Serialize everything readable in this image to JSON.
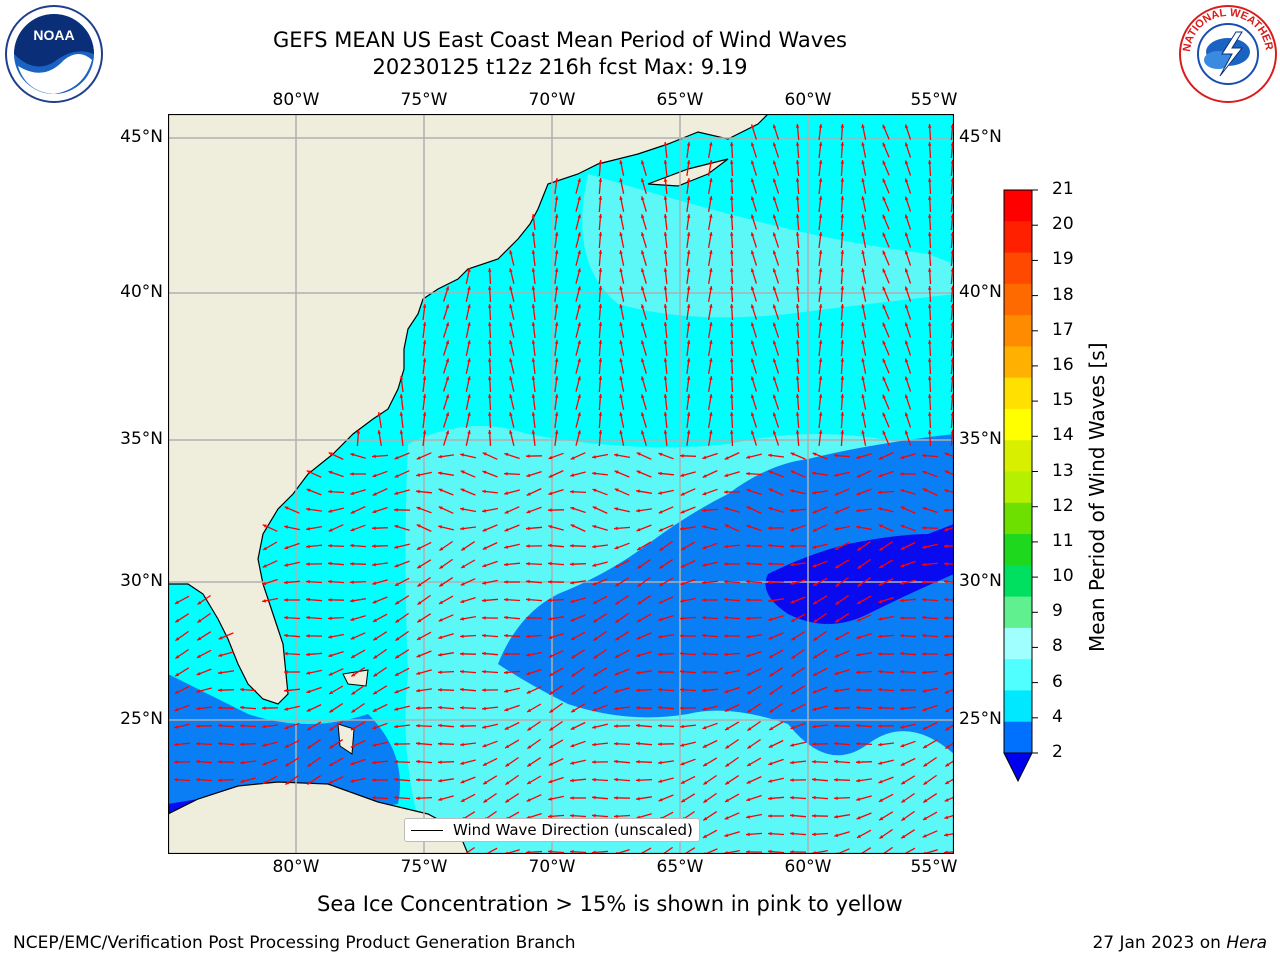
{
  "header": {
    "title_line1": "GEFS MEAN US East Coast Mean Period of Wind Waves",
    "title_line2": "20230125 t12z 216h fcst   Max: 9.19"
  },
  "logos": {
    "left": "noaa-logo",
    "right": "national-weather-service-logo",
    "left_text": "NOAA",
    "right_text": "NATIONAL WEATHER SERVICE"
  },
  "axes": {
    "lon_ticks": [
      "80°W",
      "75°W",
      "70°W",
      "65°W",
      "60°W",
      "55°W"
    ],
    "lat_ticks": [
      "45°N",
      "40°N",
      "35°N",
      "30°N",
      "25°N"
    ]
  },
  "legend": {
    "label": "Wind Wave Direction (unscaled)"
  },
  "colorbar": {
    "title": "Mean Period of Wind Waves [s]",
    "labels": [
      "21",
      "20",
      "19",
      "18",
      "17",
      "16",
      "15",
      "14",
      "13",
      "12",
      "11",
      "10",
      "9",
      "8",
      "6",
      "4",
      "2"
    ],
    "colors": [
      "#ff0000",
      "#ff2000",
      "#ff4800",
      "#ff6a00",
      "#ff8c00",
      "#ffb000",
      "#ffe000",
      "#ffff00",
      "#d8f000",
      "#b4f000",
      "#6ee000",
      "#1ed81e",
      "#00e060",
      "#60f090",
      "#a0ffff",
      "#50ffff",
      "#00e8ff",
      "#0070ff"
    ],
    "extend_color": "#0000f0"
  },
  "map": {
    "land_color": "#efeddc",
    "grid_color": "#b0b0b0",
    "arrow_color": "#ff0000",
    "sea_colors": [
      "#00ffff",
      "#5cf7f7",
      "#0a7ff5",
      "#0a0af0"
    ]
  },
  "footer": {
    "subtitle": "Sea Ice Concentration > 15% is shown in pink to yellow",
    "left": "NCEP/EMC/Verification Post Processing Product Generation Branch",
    "right_date": "27 Jan 2023 on ",
    "right_host": "Hera"
  }
}
